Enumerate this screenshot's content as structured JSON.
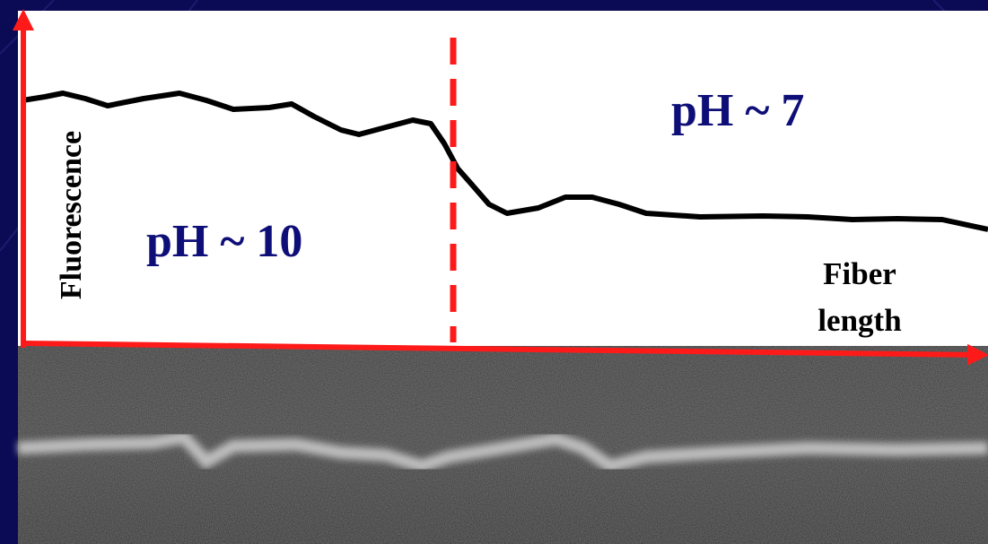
{
  "y_axis_label": "Fluorescence",
  "x_axis_label": [
    "Fiber",
    "length"
  ],
  "region_left_label": "pH ~ 10",
  "region_right_label": "pH ~ 7"
}
